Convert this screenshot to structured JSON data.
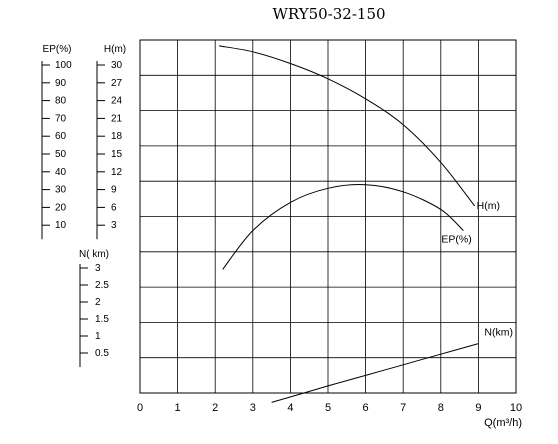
{
  "chart_data": {
    "type": "line",
    "title": "WRY50-32-150",
    "x_axis": {
      "label": "Q(m³/h)",
      "range": [
        0,
        10
      ],
      "ticks": [
        "0",
        "1",
        "2",
        "3",
        "4",
        "5",
        "6",
        "7",
        "8",
        "9",
        "10"
      ]
    },
    "y_axes": {
      "ep": {
        "label": "EP(%)",
        "ticks": [
          "100",
          "90",
          "80",
          "70",
          "60",
          "50",
          "40",
          "30",
          "20",
          "10"
        ],
        "range": [
          0,
          100
        ]
      },
      "h": {
        "label": "H(m)",
        "ticks": [
          "30",
          "27",
          "24",
          "21",
          "18",
          "15",
          "12",
          "9",
          "6",
          "3"
        ],
        "range": [
          0,
          30
        ]
      },
      "n": {
        "label": "N( km)",
        "ticks": [
          "3",
          "2.5",
          "2",
          "1.5",
          "1",
          "0.5"
        ],
        "range": [
          0,
          3
        ]
      }
    },
    "grid": true,
    "series": [
      {
        "name": "H(m)",
        "axis": "h",
        "x": [
          2.1,
          3,
          4,
          5,
          6,
          7,
          8,
          8.9
        ],
        "y": [
          29.5,
          29.0,
          28.0,
          26.7,
          25.0,
          22.8,
          19.6,
          15.9
        ]
      },
      {
        "name": "EP(%)",
        "axis": "ep",
        "x": [
          2.2,
          3,
          4,
          5,
          6,
          7,
          8,
          8.6
        ],
        "y": [
          35,
          46,
          54,
          58,
          59,
          57,
          52,
          46
        ]
      },
      {
        "name": "N(km)",
        "axis": "n",
        "x": [
          3.5,
          5,
          6,
          7,
          8,
          9
        ],
        "y": [
          -0.08,
          0.06,
          0.15,
          0.24,
          0.33,
          0.42
        ]
      }
    ]
  }
}
